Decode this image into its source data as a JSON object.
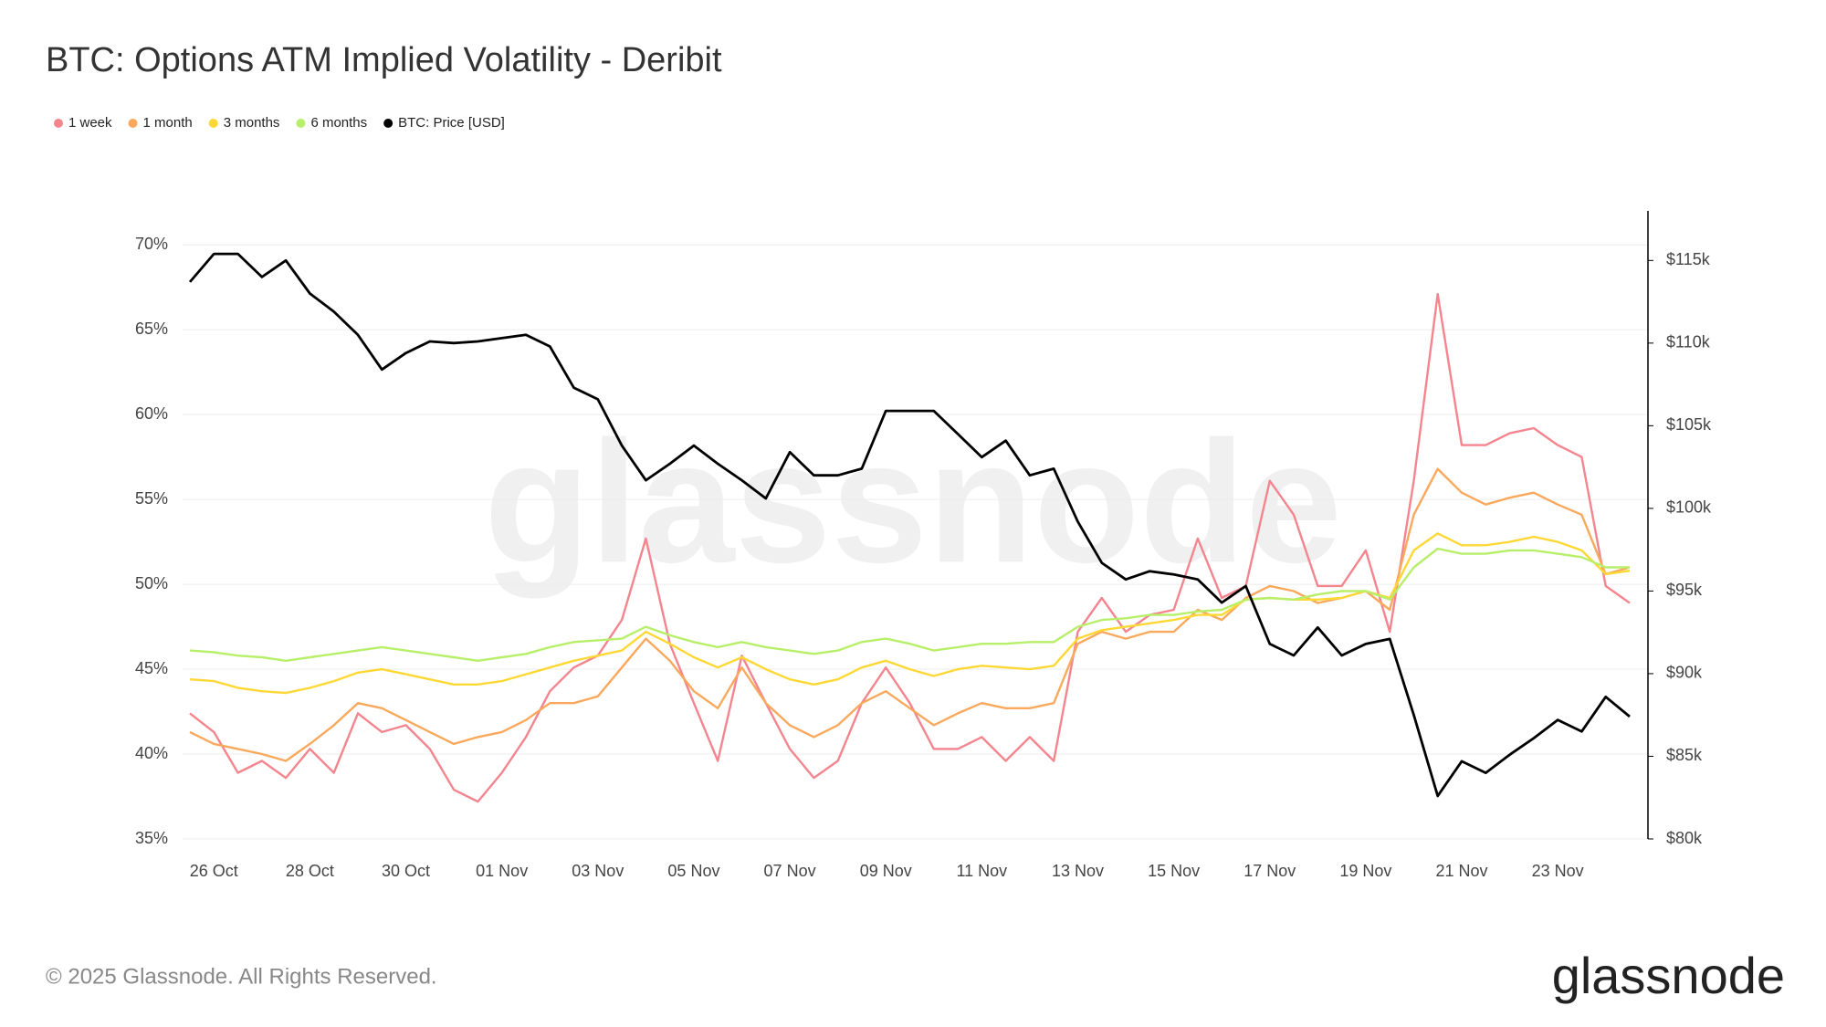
{
  "chart_data": {
    "type": "line",
    "title": "BTC: Options ATM Implied Volatility - Deribit",
    "categories": [
      null,
      "26 Oct",
      null,
      null,
      null,
      "28 Oct",
      null,
      null,
      null,
      "30 Oct",
      null,
      null,
      null,
      "01 Nov",
      null,
      null,
      null,
      "03 Nov",
      null,
      null,
      null,
      "05 Nov",
      null,
      null,
      null,
      "07 Nov",
      null,
      null,
      null,
      "09 Nov",
      null,
      null,
      null,
      "11 Nov",
      null,
      null,
      null,
      "13 Nov",
      null,
      null,
      null,
      "15 Nov",
      null,
      null,
      null,
      "17 Nov",
      null,
      null,
      null,
      "19 Nov",
      null,
      null,
      null,
      "21 Nov",
      null,
      null,
      null,
      "23 Nov",
      null,
      null,
      null
    ],
    "series": [
      {
        "name": "1 week",
        "color": "#f4858e",
        "values": [
          42.4,
          41.3,
          38.9,
          39.6,
          38.6,
          40.3,
          38.9,
          42.4,
          41.3,
          41.7,
          40.3,
          37.9,
          37.2,
          38.9,
          41,
          43.7,
          45.1,
          45.8,
          47.9,
          52.7,
          46.5,
          43,
          39.6,
          45.8,
          43,
          40.3,
          38.6,
          39.6,
          43,
          45.1,
          43,
          40.3,
          40.3,
          41,
          39.6,
          41,
          39.6,
          47.2,
          49.2,
          47.2,
          48.2,
          48.5,
          52.7,
          49.2,
          49.9,
          56.1,
          54.1,
          49.9,
          49.9,
          52,
          47.2,
          56.1,
          67.1,
          58.2,
          58.2,
          58.9,
          59.2,
          58.2,
          57.5,
          49.9,
          48.9
        ]
      },
      {
        "name": "1 month",
        "color": "#f9a85c",
        "values": [
          41.3,
          40.6,
          40.3,
          40,
          39.6,
          40.6,
          41.7,
          43,
          42.7,
          42,
          41.3,
          40.6,
          41,
          41.3,
          42,
          43,
          43,
          43.4,
          45.1,
          46.8,
          45.5,
          43.7,
          42.7,
          45.1,
          43,
          41.7,
          41,
          41.7,
          43,
          43.7,
          42.7,
          41.7,
          42.4,
          43,
          42.7,
          42.7,
          43,
          46.5,
          47.2,
          46.8,
          47.2,
          47.2,
          48.5,
          47.9,
          49.2,
          49.9,
          49.6,
          48.9,
          49.2,
          49.6,
          48.5,
          54.1,
          56.8,
          55.4,
          54.7,
          55.1,
          55.4,
          54.7,
          54.1,
          50.6,
          51
        ]
      },
      {
        "name": "3 months",
        "color": "#fdd835",
        "values": [
          44.4,
          44.3,
          43.9,
          43.7,
          43.6,
          43.9,
          44.3,
          44.8,
          45,
          44.7,
          44.4,
          44.1,
          44.1,
          44.3,
          44.7,
          45.1,
          45.5,
          45.8,
          46.1,
          47.2,
          46.5,
          45.7,
          45.1,
          45.7,
          45,
          44.4,
          44.1,
          44.4,
          45.1,
          45.5,
          45,
          44.6,
          45,
          45.2,
          45.1,
          45,
          45.2,
          46.8,
          47.3,
          47.5,
          47.7,
          47.9,
          48.2,
          48.2,
          49.1,
          49.2,
          49.1,
          49.1,
          49.2,
          49.6,
          49.2,
          52,
          53,
          52.3,
          52.3,
          52.5,
          52.8,
          52.5,
          52,
          50.6,
          50.8
        ]
      },
      {
        "name": "6 months",
        "color": "#b8ef6a",
        "values": [
          46.1,
          46,
          45.8,
          45.7,
          45.5,
          45.7,
          45.9,
          46.1,
          46.3,
          46.1,
          45.9,
          45.7,
          45.5,
          45.7,
          45.9,
          46.3,
          46.6,
          46.7,
          46.8,
          47.5,
          47,
          46.6,
          46.3,
          46.6,
          46.3,
          46.1,
          45.9,
          46.1,
          46.6,
          46.8,
          46.5,
          46.1,
          46.3,
          46.5,
          46.5,
          46.6,
          46.6,
          47.5,
          47.9,
          48,
          48.2,
          48.2,
          48.4,
          48.5,
          49.1,
          49.2,
          49.1,
          49.4,
          49.6,
          49.6,
          49.1,
          51,
          52.1,
          51.8,
          51.8,
          52,
          52,
          51.8,
          51.6,
          51,
          51
        ]
      },
      {
        "name": "BTC: Price [USD]",
        "color": "#000000",
        "axis": "y2",
        "values": [
          113700,
          115400,
          115400,
          114000,
          115000,
          113000,
          111900,
          110500,
          108400,
          109400,
          110100,
          110000,
          110100,
          110300,
          110500,
          109800,
          107300,
          106600,
          103800,
          101700,
          102700,
          103800,
          102700,
          101700,
          100600,
          103400,
          102000,
          102000,
          102400,
          105900,
          105900,
          105900,
          104500,
          103100,
          104100,
          102000,
          102400,
          99200,
          96700,
          95700,
          96200,
          96000,
          95700,
          94300,
          95300,
          91800,
          91100,
          92800,
          91100,
          91800,
          92100,
          87500,
          82600,
          84700,
          84000,
          85100,
          86100,
          87200,
          86500,
          88600,
          87400
        ]
      }
    ],
    "ylim": [
      35,
      72
    ],
    "yticks": [
      {
        "value": 35,
        "label": "35%"
      },
      {
        "value": 40,
        "label": "40%"
      },
      {
        "value": 45,
        "label": "45%"
      },
      {
        "value": 50,
        "label": "50%"
      },
      {
        "value": 55,
        "label": "55%"
      },
      {
        "value": 60,
        "label": "60%"
      },
      {
        "value": 65,
        "label": "65%"
      },
      {
        "value": 70,
        "label": "70%"
      }
    ],
    "y2lim": [
      80000,
      118000
    ],
    "y2ticks": [
      {
        "value": 80000,
        "label": "$80k"
      },
      {
        "value": 85000,
        "label": "$85k"
      },
      {
        "value": 90000,
        "label": "$90k"
      },
      {
        "value": 95000,
        "label": "$95k"
      },
      {
        "value": 100000,
        "label": "$100k"
      },
      {
        "value": 105000,
        "label": "$105k"
      },
      {
        "value": 110000,
        "label": "$110k"
      },
      {
        "value": 115000,
        "label": "$115k"
      }
    ],
    "grid": true,
    "legend": "top-left"
  },
  "watermark": "glassnode",
  "footer": {
    "copyright": "© 2025 Glassnode. All Rights Reserved.",
    "logo": "glassnode"
  }
}
